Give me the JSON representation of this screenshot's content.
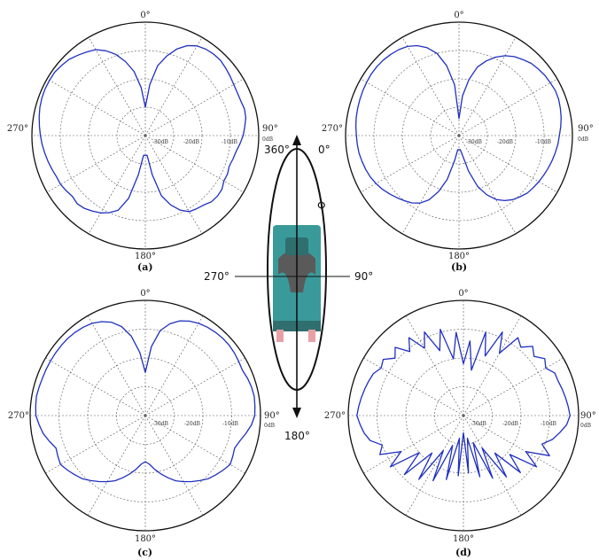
{
  "colors": {
    "trace": "#1f2fbf",
    "grid": "#555555",
    "body": "#3a9a9a",
    "bodyDark": "#2f6f6f",
    "coil": "#5a5a5a",
    "pink": "#e8a0a6"
  },
  "chart_data": [
    {
      "type": "polar",
      "caption": "(a)",
      "angle_labels": [
        "0°",
        "90°",
        "180°",
        "270°"
      ],
      "ring_labels": [
        "-30dB",
        "-20dB",
        "-10dB"
      ],
      "outer_label": "0dB",
      "series": [
        {
          "angle_deg": [
            0,
            5,
            10,
            15,
            20,
            25,
            30,
            35,
            40,
            45,
            50,
            55,
            60,
            65,
            70,
            75,
            80,
            85,
            90,
            95,
            100,
            105,
            110,
            115,
            120,
            125,
            130,
            135,
            140,
            145,
            150,
            155,
            160,
            165,
            170,
            175,
            180,
            185,
            190,
            195,
            200,
            205,
            210,
            215,
            220,
            225,
            230,
            235,
            240,
            245,
            250,
            255,
            260,
            265,
            270,
            275,
            280,
            285,
            290,
            295,
            300,
            305,
            310,
            315,
            320,
            325,
            330,
            335,
            340,
            345,
            350,
            355
          ],
          "level_db": [
            -30,
            -22,
            -15,
            -11,
            -7.5,
            -5,
            -3.5,
            -2.8,
            -2.5,
            -2.5,
            -3,
            -3.5,
            -4,
            -4.2,
            -4.2,
            -3.8,
            -4,
            -4.8,
            -5.5,
            -6.5,
            -7.5,
            -8,
            -8.5,
            -8,
            -8,
            -7,
            -6.8,
            -7,
            -8,
            -8.5,
            -9,
            -11,
            -14,
            -18,
            -26,
            -33,
            -33,
            -33,
            -26,
            -17,
            -12,
            -10,
            -8.5,
            -7.5,
            -6.5,
            -6,
            -6.5,
            -6,
            -5.5,
            -5.5,
            -5,
            -4.5,
            -4,
            -3.5,
            -3,
            -2.5,
            -2,
            -1.5,
            -1.2,
            -1,
            -1,
            -1,
            -1.5,
            -2,
            -3,
            -4,
            -5,
            -7,
            -9.5,
            -13,
            -17,
            -23
          ]
        }
      ]
    },
    {
      "type": "polar",
      "caption": "(b)",
      "angle_labels": [
        "0°",
        "90°",
        "180°",
        "270°"
      ],
      "ring_labels": [
        "-30dB",
        "-20dB",
        "-10dB"
      ],
      "outer_label": "0dB",
      "series": [
        {
          "angle_deg": [
            0,
            5,
            10,
            15,
            20,
            25,
            30,
            35,
            40,
            45,
            50,
            55,
            60,
            65,
            70,
            75,
            80,
            85,
            90,
            95,
            100,
            105,
            110,
            115,
            120,
            125,
            130,
            135,
            140,
            145,
            150,
            155,
            160,
            165,
            170,
            175,
            180,
            185,
            190,
            195,
            200,
            205,
            210,
            215,
            220,
            225,
            230,
            235,
            240,
            245,
            250,
            255,
            260,
            265,
            270,
            275,
            280,
            285,
            290,
            295,
            300,
            305,
            310,
            315,
            320,
            325,
            330,
            335,
            340,
            345,
            350,
            355
          ],
          "level_db": [
            -34,
            -26,
            -20,
            -15,
            -12,
            -9.5,
            -7.5,
            -6,
            -5,
            -4,
            -3.5,
            -3,
            -2.8,
            -2.5,
            -2.6,
            -3,
            -3.4,
            -4,
            -4.6,
            -5,
            -5.5,
            -6,
            -6.5,
            -7,
            -7.5,
            -8,
            -8.5,
            -9.5,
            -10.5,
            -12,
            -14,
            -17,
            -21,
            -27,
            -33,
            -35,
            -35,
            -35,
            -31,
            -24,
            -19,
            -15,
            -12.5,
            -11,
            -10,
            -9,
            -8,
            -7,
            -6.2,
            -5.5,
            -5,
            -4.6,
            -4.2,
            -4,
            -3.8,
            -3.5,
            -3.2,
            -3,
            -2.8,
            -2.6,
            -2.4,
            -2.2,
            -2.2,
            -2.3,
            -2.6,
            -3,
            -3.7,
            -5,
            -7,
            -10,
            -15,
            -22
          ]
        }
      ]
    },
    {
      "type": "polar",
      "caption": "(c)",
      "angle_labels": [
        "0°",
        "90°",
        "180°",
        "270°"
      ],
      "ring_labels": [
        "-30dB",
        "-20dB",
        "-10dB"
      ],
      "outer_label": "0dB",
      "series": [
        {
          "angle_deg": [
            0,
            5,
            10,
            15,
            20,
            25,
            30,
            35,
            40,
            45,
            50,
            55,
            60,
            65,
            70,
            75,
            80,
            85,
            90,
            95,
            100,
            105,
            110,
            115,
            120,
            125,
            130,
            135,
            140,
            145,
            150,
            155,
            160,
            165,
            170,
            175,
            180,
            185,
            190,
            195,
            200,
            205,
            210,
            215,
            220,
            225,
            230,
            235,
            240,
            245,
            250,
            255,
            260,
            265,
            270,
            275,
            280,
            285,
            290,
            295,
            300,
            305,
            310,
            315,
            320,
            325,
            330,
            335,
            340,
            345,
            350,
            355
          ],
          "level_db": [
            -25,
            -16,
            -10,
            -7,
            -5,
            -3.8,
            -3,
            -2.5,
            -2.2,
            -2,
            -2,
            -2.2,
            -2.5,
            -2.8,
            -2.2,
            -1.8,
            -1.6,
            -1.8,
            -2,
            -3,
            -4.5,
            -6,
            -7,
            -6.5,
            -6,
            -7,
            -8,
            -9,
            -10.5,
            -12,
            -13.5,
            -15,
            -17,
            -19,
            -21,
            -23,
            -24,
            -23,
            -21,
            -19,
            -17,
            -15,
            -13.5,
            -12,
            -10.5,
            -9,
            -8,
            -7,
            -6,
            -6.5,
            -7,
            -5.5,
            -4,
            -3,
            -2,
            -1.8,
            -1.6,
            -1.8,
            -2,
            -2,
            -2,
            -2,
            -2,
            -2,
            -2.2,
            -2.5,
            -3,
            -4,
            -5.5,
            -8,
            -12,
            -18
          ]
        }
      ]
    },
    {
      "type": "polar",
      "caption": "(d)",
      "angle_labels": [
        "0°",
        "90°",
        "180°",
        "270°"
      ],
      "ring_labels": [
        "-30dB",
        "-20dB",
        "-10dB"
      ],
      "outer_label": "0dB",
      "series": [
        {
          "angle_deg": [
            0,
            5,
            10,
            15,
            20,
            25,
            30,
            35,
            40,
            45,
            50,
            55,
            60,
            65,
            70,
            75,
            80,
            85,
            90,
            95,
            100,
            105,
            110,
            115,
            120,
            125,
            130,
            135,
            140,
            145,
            150,
            155,
            160,
            165,
            170,
            175,
            180,
            185,
            190,
            195,
            200,
            205,
            210,
            215,
            220,
            225,
            230,
            235,
            240,
            245,
            250,
            255,
            260,
            265,
            270,
            275,
            280,
            285,
            290,
            295,
            300,
            305,
            310,
            315,
            320,
            325,
            330,
            335,
            340,
            345,
            350,
            355
          ],
          "level_db": [
            -22,
            -14,
            -24,
            -10,
            -18,
            -8,
            -15,
            -7,
            -9,
            -6,
            -8,
            -5.5,
            -7,
            -5,
            -5,
            -4.5,
            -4,
            -3.5,
            -3,
            -4,
            -6,
            -8,
            -11,
            -7,
            -15,
            -9,
            -19,
            -12,
            -23,
            -14,
            -27,
            -16,
            -30,
            -18,
            -32,
            -20,
            -34,
            -19,
            -32,
            -17,
            -29,
            -15,
            -26,
            -13,
            -23,
            -11,
            -20,
            -9,
            -15,
            -8,
            -10,
            -6.5,
            -5,
            -4,
            -3,
            -3.5,
            -4,
            -4.5,
            -5,
            -5.5,
            -7,
            -6,
            -9,
            -6.5,
            -11,
            -7,
            -13,
            -8,
            -16,
            -9,
            -20,
            -11
          ]
        }
      ]
    }
  ],
  "orientation": {
    "label_360": "360°",
    "label_0": "0°",
    "label_90": "90°",
    "label_180": "180°",
    "label_270": "270°",
    "label_phi": "Φ"
  }
}
